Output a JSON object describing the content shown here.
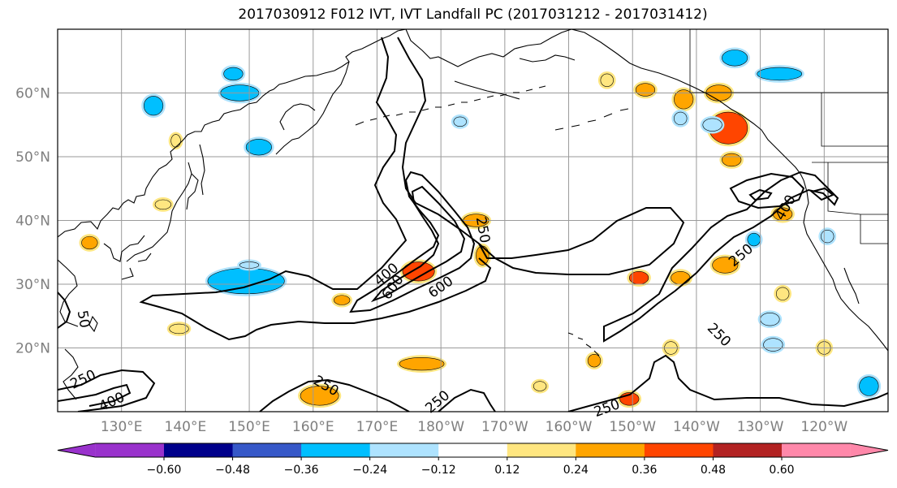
{
  "title": "2017030912 F012 IVT, IVT Landfall PC (2017031212 - 2017031412)",
  "map": {
    "lon_range": [
      120,
      250
    ],
    "lat_range": [
      10,
      70
    ],
    "lat_ticks": [
      {
        "lat": 20,
        "label": "20°N"
      },
      {
        "lat": 30,
        "label": "30°N"
      },
      {
        "lat": 40,
        "label": "40°N"
      },
      {
        "lat": 50,
        "label": "50°N"
      },
      {
        "lat": 60,
        "label": "60°N"
      }
    ],
    "lon_ticks": [
      {
        "lon": 130,
        "label": "130°E"
      },
      {
        "lon": 140,
        "label": "140°E"
      },
      {
        "lon": 150,
        "label": "150°E"
      },
      {
        "lon": 160,
        "label": "160°E"
      },
      {
        "lon": 170,
        "label": "170°E"
      },
      {
        "lon": 180,
        "label": "180°W"
      },
      {
        "lon": 190,
        "label": "170°W"
      },
      {
        "lon": 200,
        "label": "160°W"
      },
      {
        "lon": 210,
        "label": "150°W"
      },
      {
        "lon": 220,
        "label": "140°W"
      },
      {
        "lon": 230,
        "label": "130°W"
      },
      {
        "lon": 240,
        "label": "120°W"
      }
    ],
    "contour_labels": [
      {
        "text": "250",
        "lon": 186.5,
        "lat": 38.5,
        "rot": 80
      },
      {
        "text": "400",
        "lon": 171.5,
        "lat": 31.5,
        "rot": -40
      },
      {
        "text": "600",
        "lon": 172.5,
        "lat": 29.5,
        "rot": -55
      },
      {
        "text": "600",
        "lon": 180.0,
        "lat": 29.5,
        "rot": -35
      },
      {
        "text": "250",
        "lon": 223.5,
        "lat": 22.0,
        "rot": 45
      },
      {
        "text": "250",
        "lon": 227.0,
        "lat": 34.5,
        "rot": -40
      },
      {
        "text": "400",
        "lon": 234.0,
        "lat": 42.0,
        "rot": -60
      },
      {
        "text": "250",
        "lon": 124.0,
        "lat": 15.0,
        "rot": -25
      },
      {
        "text": "400",
        "lon": 128.5,
        "lat": 11.5,
        "rot": -25
      },
      {
        "text": "250",
        "lon": 162.0,
        "lat": 14.0,
        "rot": 30
      },
      {
        "text": "250",
        "lon": 179.5,
        "lat": 11.5,
        "rot": -40
      },
      {
        "text": "250",
        "lon": 206.0,
        "lat": 10.5,
        "rot": -20
      },
      {
        "text": "50",
        "lon": 124.0,
        "lat": 24.5,
        "rot": 80
      }
    ],
    "pc_blobs": [
      {
        "lon": 149.5,
        "lat": 30.5,
        "w": 12,
        "h": 4,
        "v": -0.3
      },
      {
        "lon": 148.5,
        "lat": 60.0,
        "w": 6,
        "h": 2.5,
        "v": -0.3
      },
      {
        "lon": 151.5,
        "lat": 51.5,
        "w": 4,
        "h": 2.5,
        "v": -0.28
      },
      {
        "lon": 135.0,
        "lat": 58.0,
        "w": 3,
        "h": 3,
        "v": -0.26
      },
      {
        "lon": 147.5,
        "lat": 63.0,
        "w": 3,
        "h": 2,
        "v": -0.28
      },
      {
        "lon": 233.0,
        "lat": 63.0,
        "w": 7,
        "h": 2,
        "v": -0.3
      },
      {
        "lon": 226.0,
        "lat": 65.5,
        "w": 4,
        "h": 2.5,
        "v": -0.26
      },
      {
        "lon": 225.0,
        "lat": 54.5,
        "w": 6,
        "h": 5,
        "v": 0.42
      },
      {
        "lon": 223.5,
        "lat": 60.0,
        "w": 4,
        "h": 2.5,
        "v": 0.3
      },
      {
        "lon": 225.5,
        "lat": 49.5,
        "w": 3,
        "h": 2,
        "v": 0.3
      },
      {
        "lon": 176.5,
        "lat": 32.0,
        "w": 5,
        "h": 3,
        "v": 0.36
      },
      {
        "lon": 186.5,
        "lat": 34.5,
        "w": 2,
        "h": 3,
        "v": 0.28
      },
      {
        "lon": 185.5,
        "lat": 40.0,
        "w": 4,
        "h": 2,
        "v": 0.26
      },
      {
        "lon": 177.0,
        "lat": 17.5,
        "w": 7,
        "h": 2,
        "v": 0.26
      },
      {
        "lon": 209.5,
        "lat": 12.0,
        "w": 3,
        "h": 2,
        "v": 0.38
      },
      {
        "lon": 161.0,
        "lat": 12.5,
        "w": 6,
        "h": 3,
        "v": 0.26
      },
      {
        "lon": 211.0,
        "lat": 31.0,
        "w": 3,
        "h": 2,
        "v": 0.36
      },
      {
        "lon": 217.5,
        "lat": 31.0,
        "w": 3,
        "h": 2,
        "v": 0.26
      },
      {
        "lon": 224.5,
        "lat": 33.0,
        "w": 4,
        "h": 2.5,
        "v": 0.28
      },
      {
        "lon": 222.5,
        "lat": 55.0,
        "w": 3,
        "h": 2,
        "v": -0.2
      },
      {
        "lon": 247.0,
        "lat": 14.0,
        "w": 3,
        "h": 3,
        "v": -0.28
      },
      {
        "lon": 218.0,
        "lat": 59.0,
        "w": 3,
        "h": 3,
        "v": 0.26
      },
      {
        "lon": 233.5,
        "lat": 41.0,
        "w": 3,
        "h": 2,
        "v": 0.26
      },
      {
        "lon": 212.0,
        "lat": 60.5,
        "w": 3,
        "h": 2,
        "v": 0.26
      },
      {
        "lon": 217.5,
        "lat": 56.0,
        "w": 2,
        "h": 2,
        "v": -0.18
      },
      {
        "lon": 229.0,
        "lat": 37.0,
        "w": 2,
        "h": 2,
        "v": -0.26
      },
      {
        "lon": 204.0,
        "lat": 18.0,
        "w": 2,
        "h": 2,
        "v": 0.28
      },
      {
        "lon": 164.5,
        "lat": 27.5,
        "w": 2.5,
        "h": 1.5,
        "v": 0.26
      },
      {
        "lon": 138.5,
        "lat": 52.5,
        "w": 1.5,
        "h": 2,
        "v": 0.22
      },
      {
        "lon": 125.0,
        "lat": 36.5,
        "w": 2.5,
        "h": 2,
        "v": 0.26
      },
      {
        "lon": 136.5,
        "lat": 42.5,
        "w": 2.5,
        "h": 1.5,
        "v": 0.22
      },
      {
        "lon": 139.0,
        "lat": 23.0,
        "w": 3,
        "h": 1.5,
        "v": 0.22
      },
      {
        "lon": 183.0,
        "lat": 55.5,
        "w": 2,
        "h": 1.5,
        "v": -0.2
      },
      {
        "lon": 232.0,
        "lat": 20.5,
        "w": 3,
        "h": 2,
        "v": -0.22
      },
      {
        "lon": 240.0,
        "lat": 20.0,
        "w": 2,
        "h": 2,
        "v": 0.22
      },
      {
        "lon": 216.0,
        "lat": 20.0,
        "w": 2,
        "h": 2,
        "v": 0.22
      },
      {
        "lon": 195.5,
        "lat": 14.0,
        "w": 2,
        "h": 1.5,
        "v": 0.22
      },
      {
        "lon": 231.5,
        "lat": 24.5,
        "w": 3,
        "h": 2,
        "v": -0.2
      },
      {
        "lon": 240.5,
        "lat": 37.5,
        "w": 2,
        "h": 2,
        "v": -0.2
      },
      {
        "lon": 206.0,
        "lat": 62.0,
        "w": 2,
        "h": 2,
        "v": 0.22
      },
      {
        "lon": 233.5,
        "lat": 28.5,
        "w": 2,
        "h": 2,
        "v": 0.22
      },
      {
        "lon": 150.0,
        "lat": 33.0,
        "w": 3,
        "h": 1,
        "v": -0.2
      }
    ]
  },
  "colorbar": {
    "colors": [
      "#9932cc",
      "#00008b",
      "#3658c8",
      "#00bfff",
      "#aee3ff",
      "#ffffff",
      "#ffe680",
      "#ffa500",
      "#ff4500",
      "#b22222",
      "#ff88aa"
    ],
    "tick_labels": [
      "−0.60",
      "−0.48",
      "−0.36",
      "−0.24",
      "−0.12",
      "0.12",
      "0.24",
      "0.36",
      "0.48",
      "0.60"
    ]
  }
}
